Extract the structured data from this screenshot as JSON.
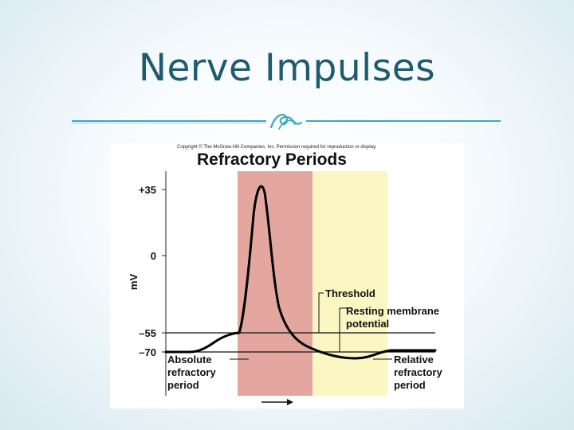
{
  "slide": {
    "title": "Nerve Impulses",
    "accent_color": "#3ba7c4",
    "title_color": "#1f5a6e",
    "divider_icon": "swirl-ornament-icon"
  },
  "figure": {
    "copyright": "Copyright © The McGraw-Hill Companies, Inc. Permission required for reproduction or display.",
    "title": "Refractory Periods",
    "y_axis_label": "mV",
    "y_ticks": [
      "+35",
      "0",
      "–55",
      "–70"
    ],
    "labels": {
      "threshold": "Threshold",
      "resting_line1": "Resting membrane",
      "resting_line2": "potential",
      "absolute_line1": "Absolute",
      "absolute_line2": "refractory",
      "absolute_line3": "period",
      "relative_line1": "Relative",
      "relative_line2": "refractory",
      "relative_line3": "period"
    },
    "colors": {
      "absolute_band": "#e3a79f",
      "relative_band": "#fbf6c2",
      "trace": "#000000"
    }
  }
}
